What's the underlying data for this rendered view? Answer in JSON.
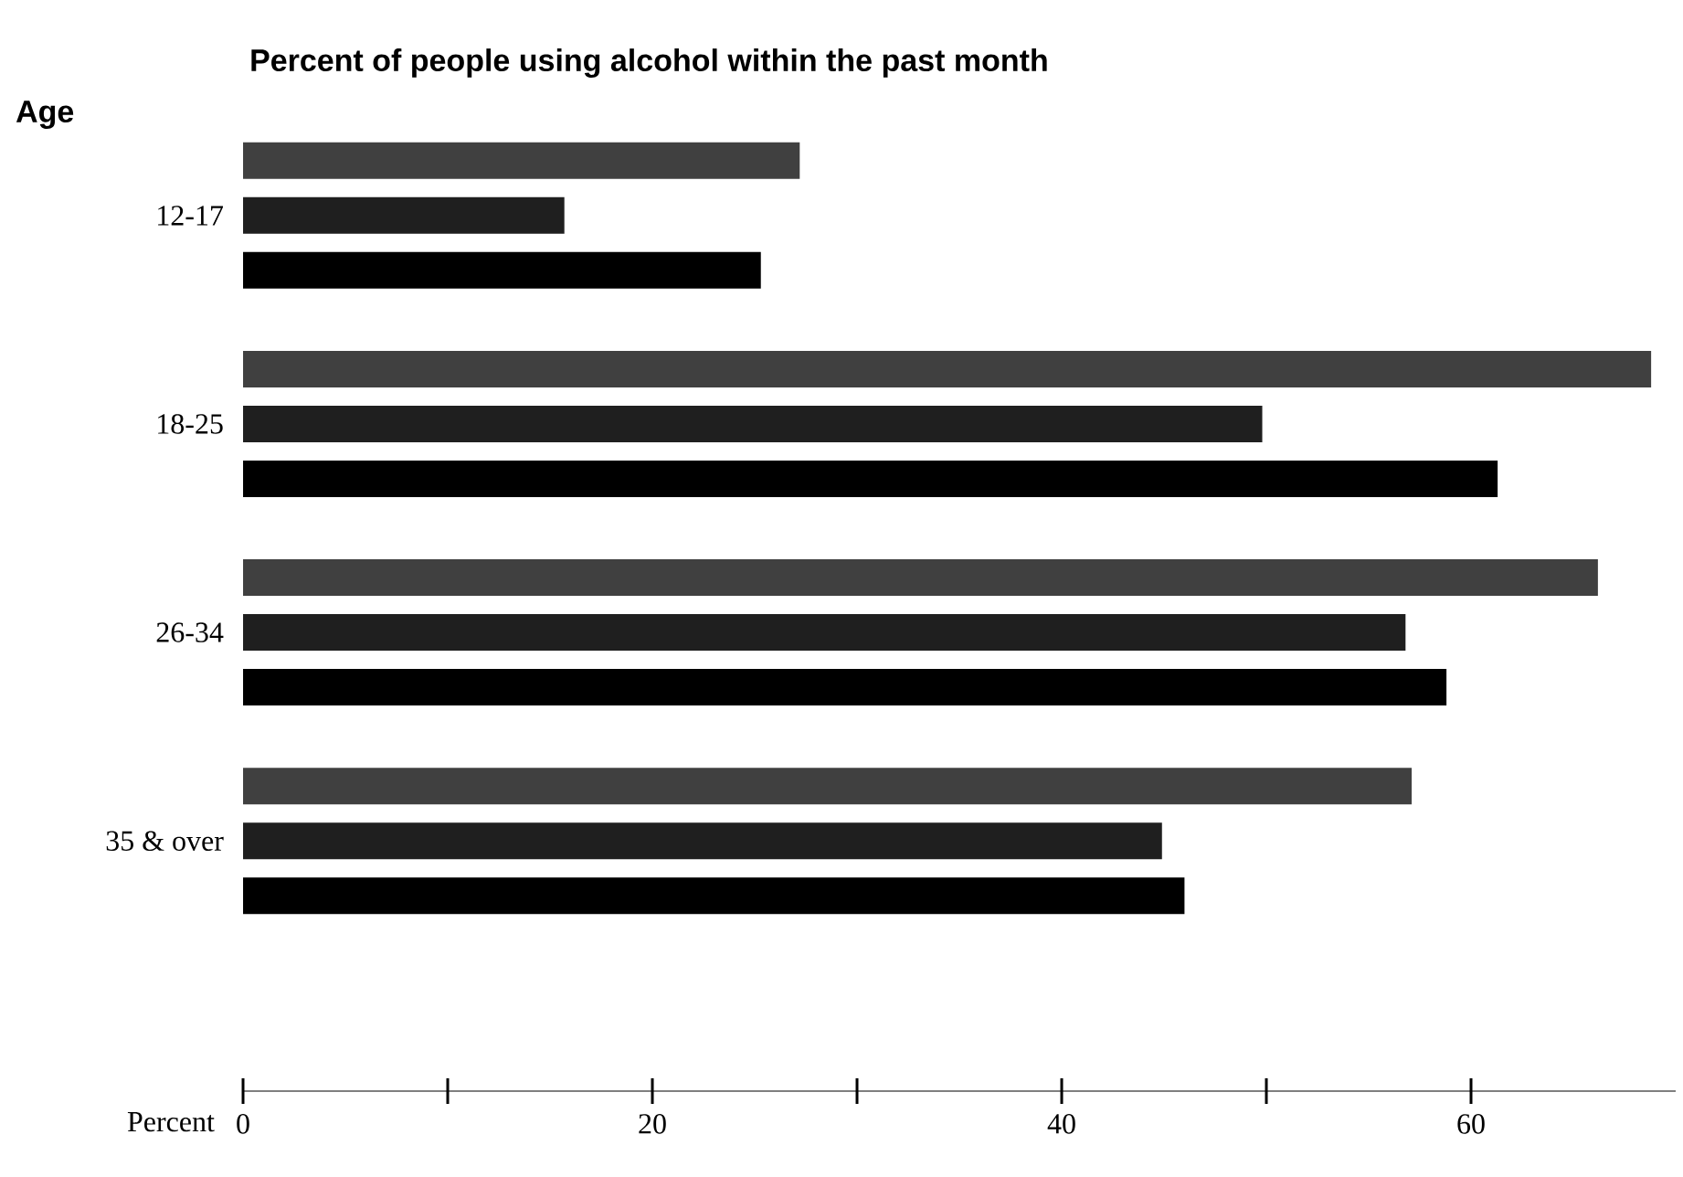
{
  "chart_data": {
    "type": "bar",
    "orientation": "horizontal",
    "title": "Percent of people using alcohol within the past month",
    "ylabel": "Age",
    "xlabel": "Percent",
    "categories": [
      "12-17",
      "18-25",
      "26-34",
      "35 & over"
    ],
    "series": [
      {
        "color": "#404040",
        "values": [
          27.2,
          68.8,
          66.2,
          57.1
        ]
      },
      {
        "color": "#1f1f1f",
        "values": [
          15.7,
          49.8,
          56.8,
          44.9
        ]
      },
      {
        "color": "#000000",
        "values": [
          25.3,
          61.3,
          58.8,
          46.0
        ]
      }
    ],
    "xlim": [
      0,
      70
    ],
    "xticks": [
      0,
      20,
      40,
      60
    ]
  }
}
